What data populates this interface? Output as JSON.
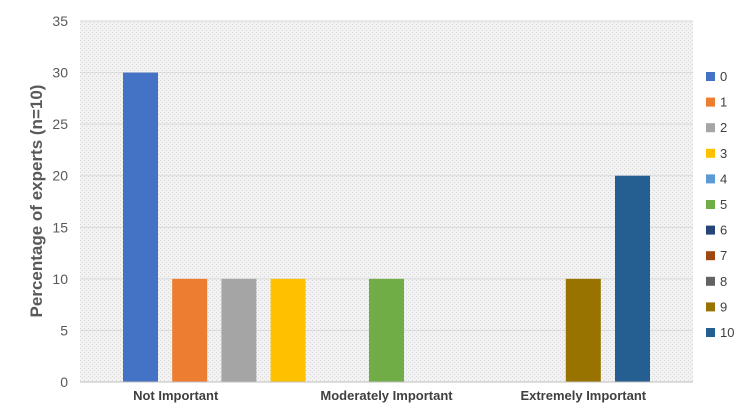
{
  "chart_data": {
    "type": "bar",
    "ylabel": "Percentage of experts (n=10)",
    "ylim": [
      0,
      35
    ],
    "yticks": [
      0,
      5,
      10,
      15,
      20,
      25,
      30,
      35
    ],
    "x_tick_labels": [
      {
        "label": "Not Important",
        "at": 1
      },
      {
        "label": "Moderately Important",
        "at": 5
      },
      {
        "label": "Extremely Important",
        "at": 9
      }
    ],
    "categories": [
      "0",
      "1",
      "2",
      "3",
      "4",
      "5",
      "6",
      "7",
      "8",
      "9",
      "10"
    ],
    "values": [
      30,
      10,
      10,
      10,
      0,
      10,
      0,
      0,
      0,
      10,
      20
    ],
    "legend_position": "right",
    "grid": true,
    "colors": [
      "#4472C4",
      "#ED7D31",
      "#A5A5A5",
      "#FFC000",
      "#5B9BD5",
      "#70AD47",
      "#264478",
      "#9E480E",
      "#636363",
      "#997300",
      "#255E91"
    ],
    "background_color": "#EBEBEB"
  }
}
